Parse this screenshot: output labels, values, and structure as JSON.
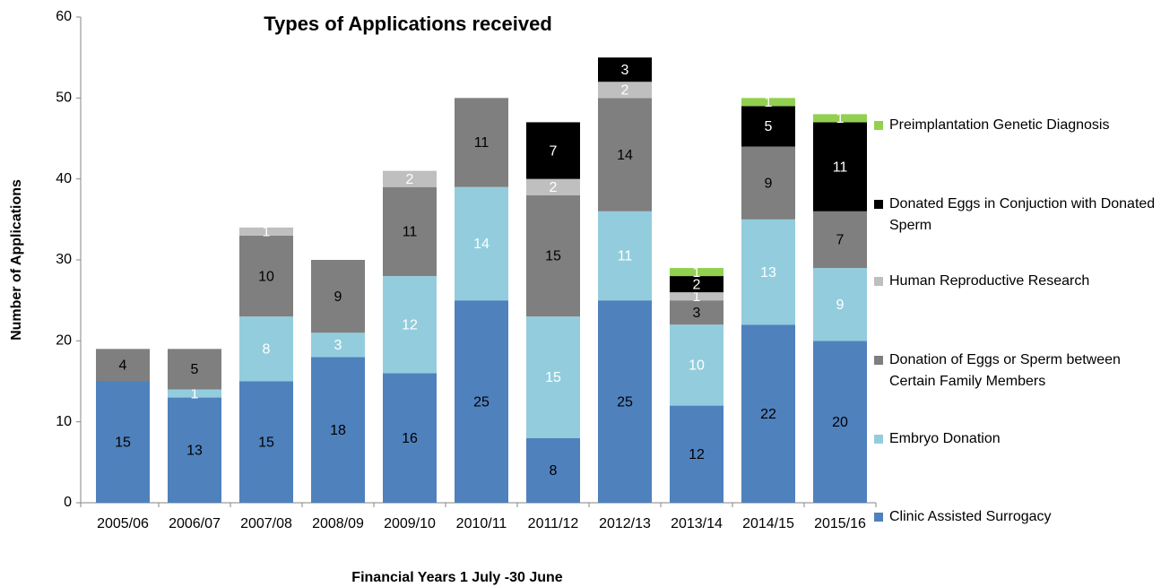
{
  "chart_data": {
    "type": "bar",
    "stacked": true,
    "title": "Types of Applications received",
    "y_label": "Number of Applications",
    "x_label": "Financial Years 1 July -30 June",
    "categories": [
      "2005/06",
      "2006/07",
      "2007/08",
      "2008/09",
      "2009/10",
      "2010/11",
      "2011/12",
      "2012/13",
      "2013/14",
      "2014/15",
      "2015/16"
    ],
    "series": [
      {
        "name": "Clinic Assisted Surrogacy",
        "color": "#4f81bd",
        "values": [
          15,
          13,
          15,
          18,
          16,
          25,
          8,
          25,
          12,
          22,
          20
        ]
      },
      {
        "name": "Embryo Donation",
        "color": "#93cddd",
        "values": [
          null,
          1,
          8,
          3,
          12,
          14,
          15,
          11,
          10,
          13,
          9
        ]
      },
      {
        "name": "Donation of Eggs or Sperm between Certain Family Members",
        "color": "#7f7f7f",
        "values": [
          4,
          5,
          10,
          9,
          11,
          11,
          15,
          14,
          3,
          9,
          7
        ]
      },
      {
        "name": "Human Reproductive Research",
        "color": "#bfbfbf",
        "values": [
          null,
          null,
          1,
          null,
          2,
          null,
          2,
          2,
          1,
          null,
          null
        ]
      },
      {
        "name": "Donated Eggs in Conjuction with Donated Sperm",
        "color": "#000000",
        "values": [
          null,
          null,
          null,
          null,
          null,
          null,
          7,
          3,
          2,
          5,
          11
        ]
      },
      {
        "name": "Preimplantation Genetic Diagnosis",
        "color": "#92d050",
        "values": [
          null,
          null,
          null,
          null,
          null,
          null,
          null,
          null,
          1,
          1,
          1
        ]
      }
    ],
    "ylim": [
      0,
      60
    ],
    "yticks": [
      0,
      10,
      20,
      30,
      40,
      50,
      60
    ],
    "grid": false,
    "legend": "right"
  }
}
